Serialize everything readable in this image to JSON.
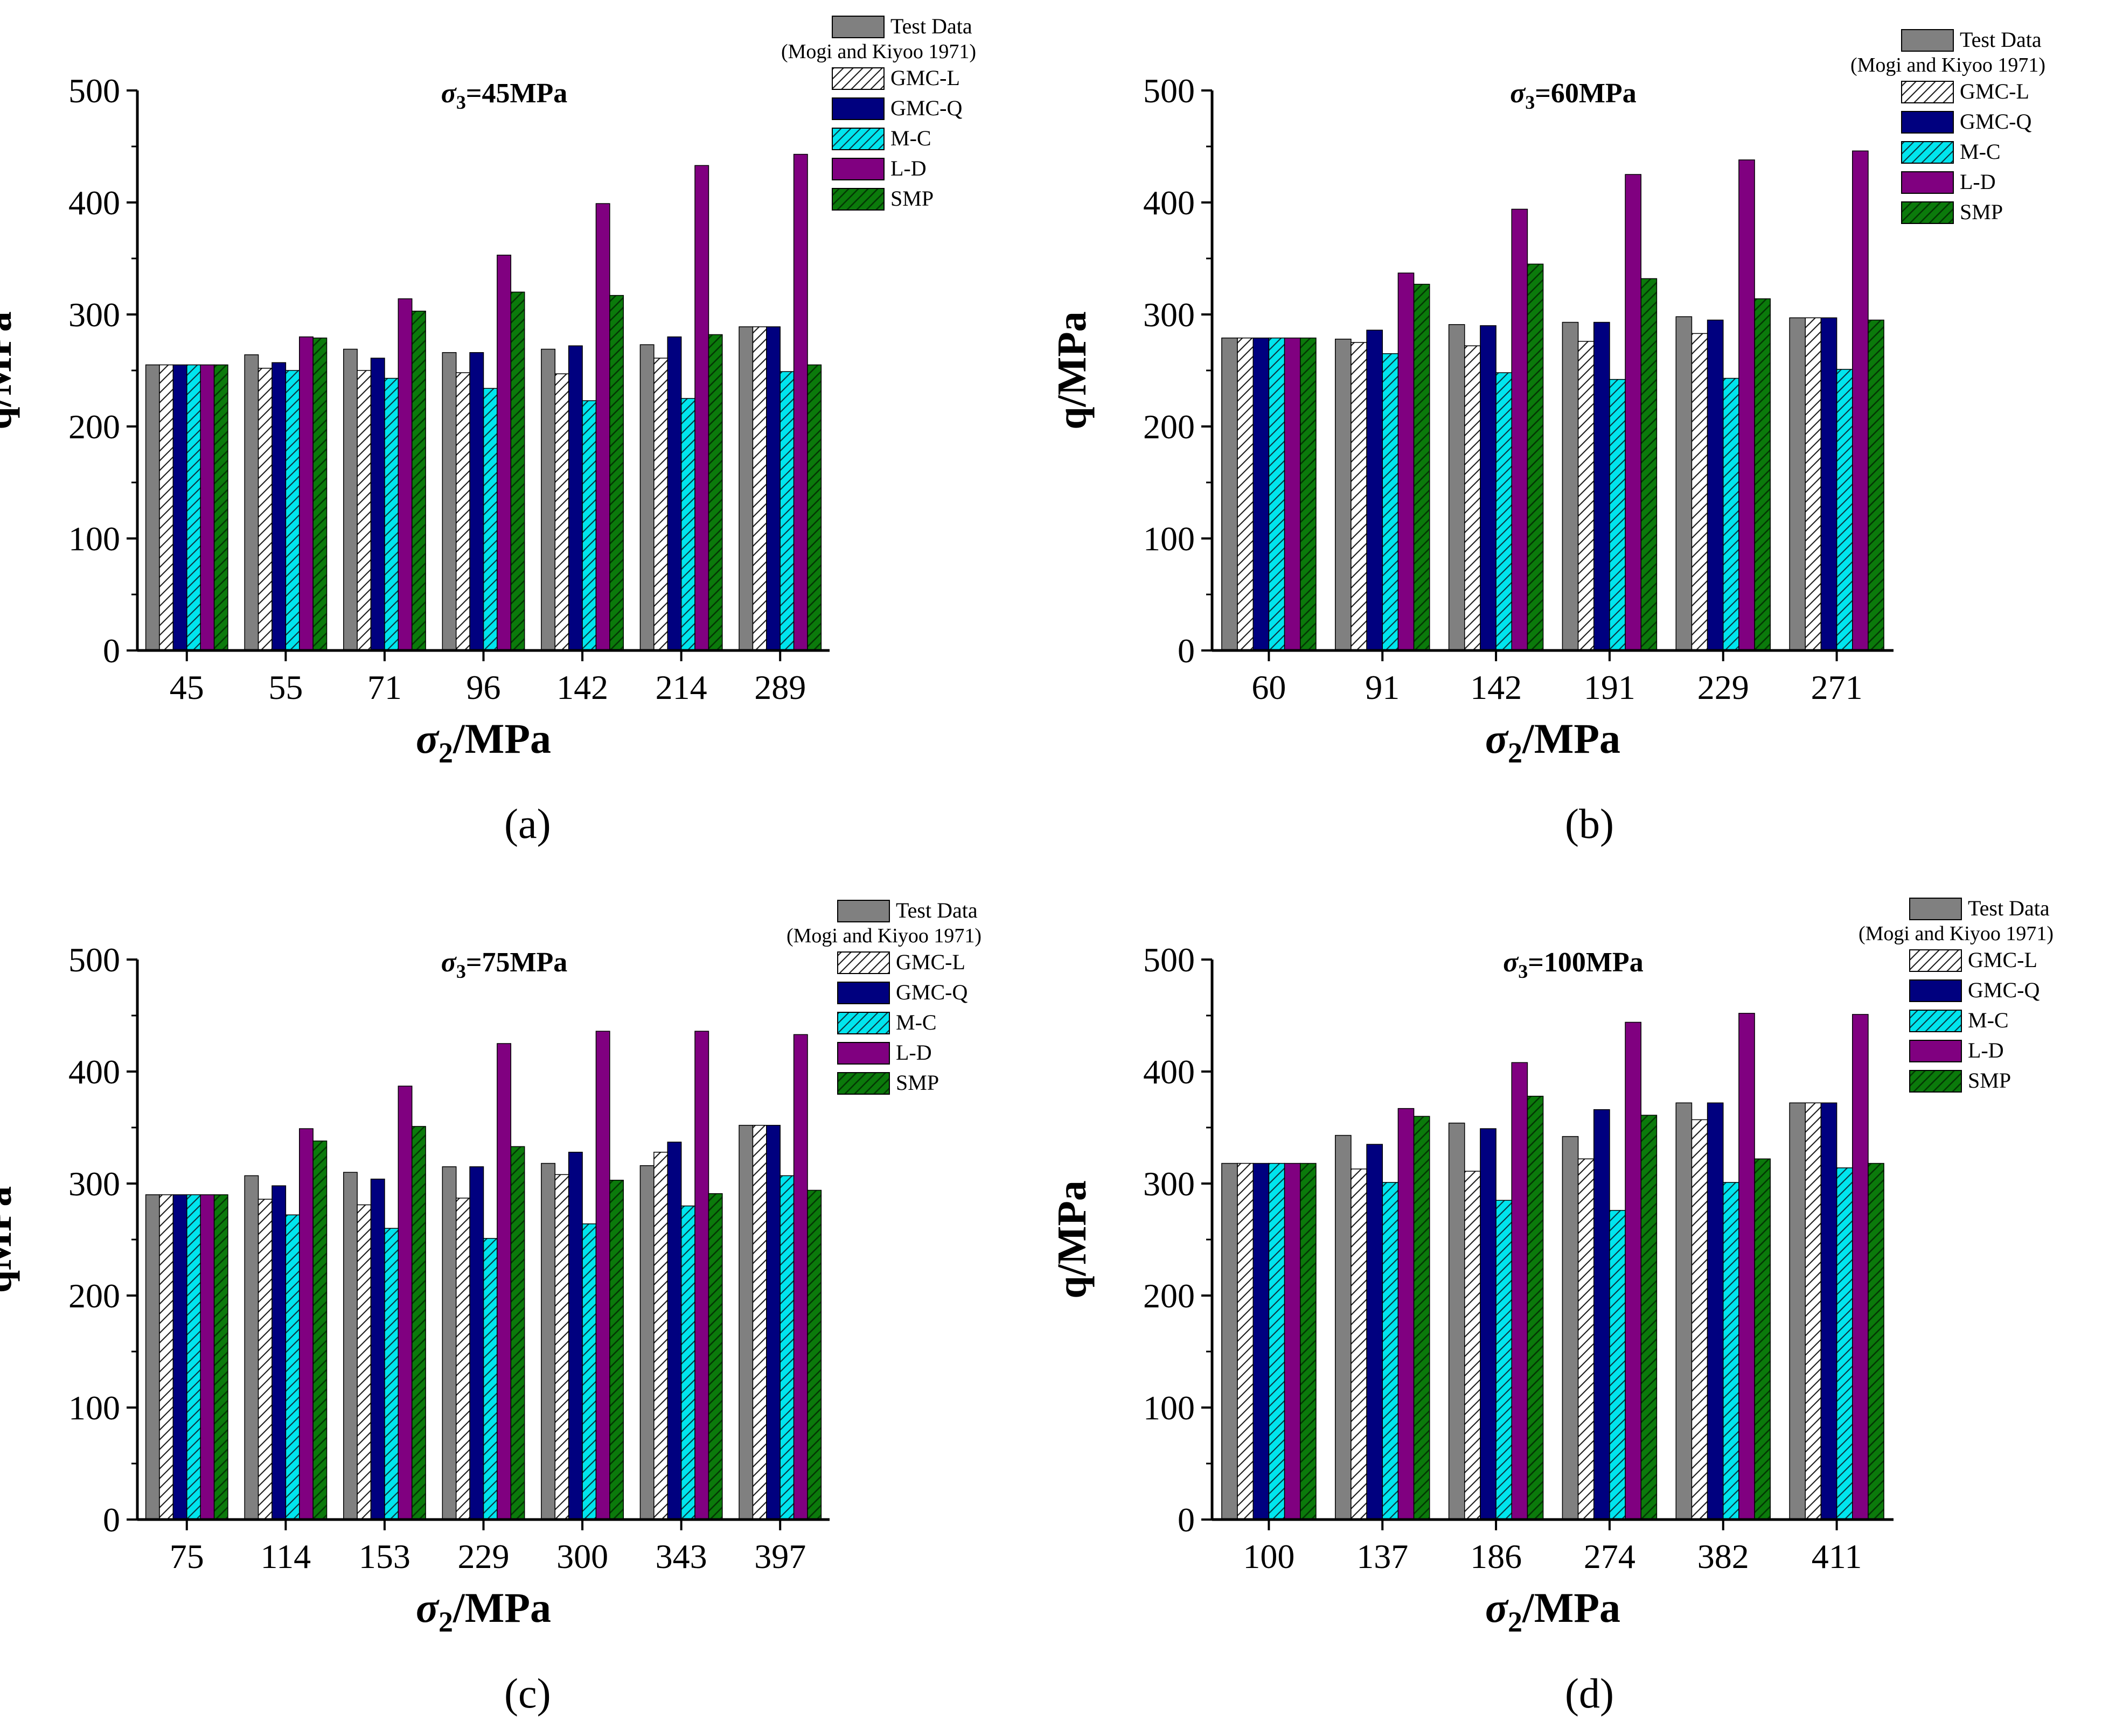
{
  "figure": {
    "legend_series_order": [
      "Test Data",
      "GMC-L",
      "GMC-Q",
      "M-C",
      "L-D",
      "SMP"
    ],
    "source_note": "(Mogi and Kiyoo 1971)"
  },
  "colors": {
    "Test Data": "#808080",
    "GMC-L": "#ffffff",
    "GMC-Q": "#00007f",
    "M-C": "#00e5ee",
    "L-D": "#800080",
    "SMP": "#0b7a0b"
  },
  "patterns": {
    "Test Data": "solid",
    "GMC-L": "hatch",
    "GMC-Q": "solid",
    "M-C": "hatch",
    "L-D": "solid",
    "SMP": "hatch"
  },
  "chart_data": [
    {
      "panel": "(a)",
      "type": "bar",
      "title_symbol": "σ",
      "title_sub": "3",
      "title_value": "=45MPa",
      "xlabel_symbol": "σ",
      "xlabel_sub": "2",
      "xlabel_unit": "/MPa",
      "ylabel": "q/MPa",
      "ylim": [
        0,
        500
      ],
      "yticks": [
        0,
        100,
        200,
        300,
        400,
        500
      ],
      "categories": [
        "45",
        "55",
        "71",
        "96",
        "142",
        "214",
        "289"
      ],
      "series": [
        {
          "name": "Test Data",
          "values": [
            255,
            264,
            269,
            266,
            269,
            273,
            289
          ]
        },
        {
          "name": "GMC-L",
          "values": [
            255,
            252,
            250,
            248,
            247,
            261,
            289
          ]
        },
        {
          "name": "GMC-Q",
          "values": [
            255,
            257,
            261,
            266,
            272,
            280,
            289
          ]
        },
        {
          "name": "M-C",
          "values": [
            255,
            250,
            243,
            234,
            223,
            225,
            249
          ]
        },
        {
          "name": "L-D",
          "values": [
            255,
            280,
            314,
            353,
            399,
            433,
            443
          ]
        },
        {
          "name": "SMP",
          "values": [
            255,
            279,
            303,
            320,
            317,
            282,
            255
          ]
        }
      ]
    },
    {
      "panel": "(b)",
      "type": "bar",
      "title_symbol": "σ",
      "title_sub": "3",
      "title_value": "=60MPa",
      "xlabel_symbol": "σ",
      "xlabel_sub": "2",
      "xlabel_unit": "/MPa",
      "ylabel": "q/MPa",
      "ylim": [
        0,
        500
      ],
      "yticks": [
        0,
        100,
        200,
        300,
        400,
        500
      ],
      "categories": [
        "60",
        "91",
        "142",
        "191",
        "229",
        "271"
      ],
      "series": [
        {
          "name": "Test Data",
          "values": [
            279,
            278,
            291,
            293,
            298,
            297
          ]
        },
        {
          "name": "GMC-L",
          "values": [
            279,
            275,
            272,
            276,
            283,
            297
          ]
        },
        {
          "name": "GMC-Q",
          "values": [
            279,
            286,
            290,
            293,
            295,
            297
          ]
        },
        {
          "name": "M-C",
          "values": [
            279,
            265,
            248,
            242,
            243,
            251
          ]
        },
        {
          "name": "L-D",
          "values": [
            279,
            337,
            394,
            425,
            438,
            446
          ]
        },
        {
          "name": "SMP",
          "values": [
            279,
            327,
            345,
            332,
            314,
            295
          ]
        }
      ]
    },
    {
      "panel": "(c)",
      "type": "bar",
      "title_symbol": "σ",
      "title_sub": "3",
      "title_value": "=75MPa",
      "xlabel_symbol": "σ",
      "xlabel_sub": "2",
      "xlabel_unit": "/MPa",
      "ylabel": "qMPa",
      "ylim": [
        0,
        500
      ],
      "yticks": [
        0,
        100,
        200,
        300,
        400,
        500
      ],
      "categories": [
        "75",
        "114",
        "153",
        "229",
        "300",
        "343",
        "397"
      ],
      "series": [
        {
          "name": "Test Data",
          "values": [
            290,
            307,
            310,
            315,
            318,
            316,
            352
          ]
        },
        {
          "name": "GMC-L",
          "values": [
            290,
            286,
            281,
            287,
            308,
            328,
            352
          ]
        },
        {
          "name": "GMC-Q",
          "values": [
            290,
            298,
            304,
            315,
            328,
            337,
            352
          ]
        },
        {
          "name": "M-C",
          "values": [
            290,
            272,
            260,
            251,
            264,
            280,
            307
          ]
        },
        {
          "name": "L-D",
          "values": [
            290,
            349,
            387,
            425,
            436,
            436,
            433
          ]
        },
        {
          "name": "SMP",
          "values": [
            290,
            338,
            351,
            333,
            303,
            291,
            294
          ]
        }
      ]
    },
    {
      "panel": "(d)",
      "type": "bar",
      "title_symbol": "σ",
      "title_sub": "3",
      "title_value": "=100MPa",
      "xlabel_symbol": "σ",
      "xlabel_sub": "2",
      "xlabel_unit": "/MPa",
      "ylabel": "q/MPa",
      "ylim": [
        0,
        500
      ],
      "yticks": [
        0,
        100,
        200,
        300,
        400,
        500
      ],
      "categories": [
        "100",
        "137",
        "186",
        "274",
        "382",
        "411"
      ],
      "series": [
        {
          "name": "Test Data",
          "values": [
            318,
            343,
            354,
            342,
            372,
            372
          ]
        },
        {
          "name": "GMC-L",
          "values": [
            318,
            313,
            311,
            322,
            357,
            372
          ]
        },
        {
          "name": "GMC-Q",
          "values": [
            318,
            335,
            349,
            366,
            372,
            372
          ]
        },
        {
          "name": "M-C",
          "values": [
            318,
            301,
            285,
            276,
            301,
            314
          ]
        },
        {
          "name": "L-D",
          "values": [
            318,
            367,
            408,
            444,
            452,
            451
          ]
        },
        {
          "name": "SMP",
          "values": [
            318,
            360,
            378,
            361,
            322,
            318
          ]
        }
      ]
    }
  ]
}
